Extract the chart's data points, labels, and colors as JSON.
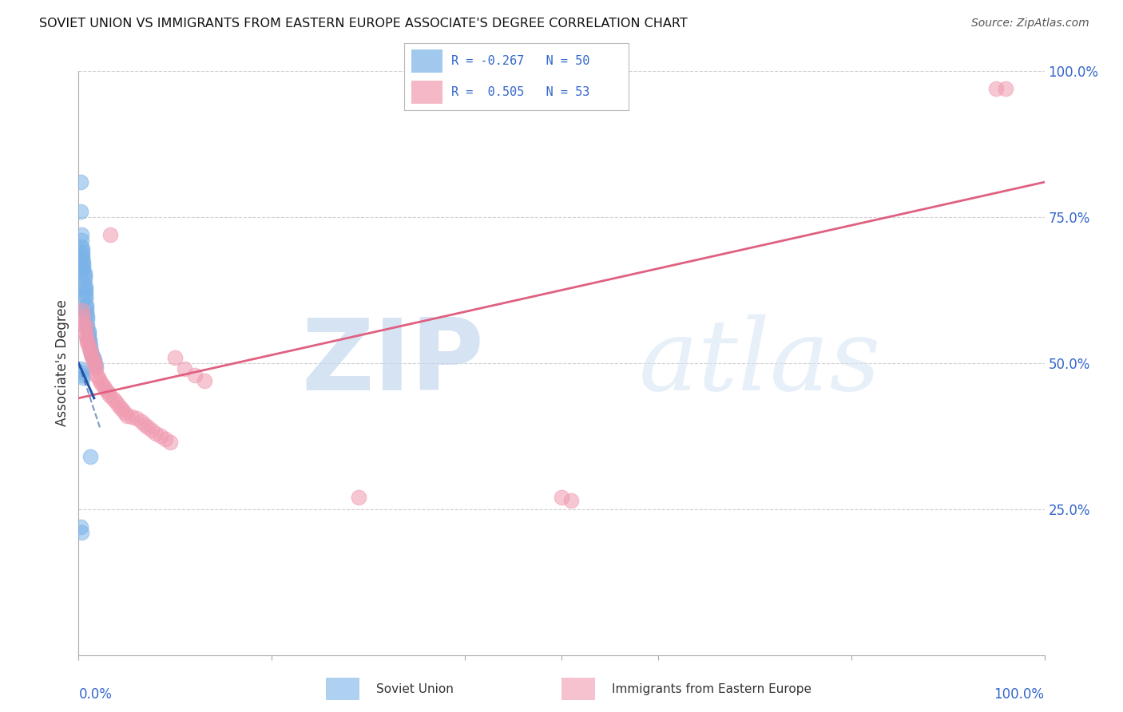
{
  "title": "SOVIET UNION VS IMMIGRANTS FROM EASTERN EUROPE ASSOCIATE'S DEGREE CORRELATION CHART",
  "source": "Source: ZipAtlas.com",
  "ylabel": "Associate's Degree",
  "watermark_zip": "ZIP",
  "watermark_atlas": "atlas",
  "xlim": [
    0.0,
    1.0
  ],
  "ylim": [
    0.0,
    1.0
  ],
  "ytick_labels": [
    "25.0%",
    "50.0%",
    "75.0%",
    "100.0%"
  ],
  "ytick_values": [
    0.25,
    0.5,
    0.75,
    1.0
  ],
  "xtick_left_label": "0.0%",
  "xtick_right_label": "100.0%",
  "bottom_label_left": "Soviet Union",
  "bottom_label_right": "Immigrants from Eastern Europe",
  "background_color": "#ffffff",
  "grid_color": "#cccccc",
  "blue_color": "#7ab3e8",
  "pink_color": "#f09ab0",
  "blue_line_solid_color": "#2255aa",
  "pink_line_color": "#e06080",
  "legend_R_blue": "-0.267",
  "legend_N_blue": "50",
  "legend_R_pink": "0.505",
  "legend_N_pink": "53",
  "blue_scatter_x": [
    0.002,
    0.002,
    0.003,
    0.003,
    0.003,
    0.004,
    0.004,
    0.004,
    0.004,
    0.005,
    0.005,
    0.005,
    0.005,
    0.006,
    0.006,
    0.006,
    0.006,
    0.007,
    0.007,
    0.007,
    0.007,
    0.007,
    0.008,
    0.008,
    0.008,
    0.008,
    0.009,
    0.009,
    0.009,
    0.009,
    0.01,
    0.01,
    0.01,
    0.011,
    0.011,
    0.012,
    0.012,
    0.013,
    0.014,
    0.015,
    0.016,
    0.017,
    0.018,
    0.002,
    0.003,
    0.004,
    0.005,
    0.002,
    0.003,
    0.012
  ],
  "blue_scatter_y": [
    0.81,
    0.76,
    0.72,
    0.71,
    0.7,
    0.695,
    0.69,
    0.685,
    0.68,
    0.675,
    0.67,
    0.665,
    0.66,
    0.655,
    0.65,
    0.645,
    0.635,
    0.63,
    0.625,
    0.62,
    0.615,
    0.61,
    0.6,
    0.595,
    0.59,
    0.585,
    0.58,
    0.575,
    0.565,
    0.56,
    0.555,
    0.55,
    0.545,
    0.54,
    0.535,
    0.53,
    0.525,
    0.52,
    0.515,
    0.51,
    0.505,
    0.5,
    0.495,
    0.49,
    0.485,
    0.48,
    0.475,
    0.22,
    0.21,
    0.34
  ],
  "pink_scatter_x": [
    0.004,
    0.005,
    0.005,
    0.006,
    0.007,
    0.007,
    0.008,
    0.009,
    0.009,
    0.01,
    0.011,
    0.012,
    0.013,
    0.014,
    0.015,
    0.016,
    0.017,
    0.018,
    0.019,
    0.02,
    0.022,
    0.024,
    0.026,
    0.028,
    0.03,
    0.032,
    0.035,
    0.038,
    0.04,
    0.043,
    0.045,
    0.048,
    0.05,
    0.055,
    0.06,
    0.065,
    0.068,
    0.072,
    0.076,
    0.08,
    0.085,
    0.09,
    0.095,
    0.1,
    0.11,
    0.12,
    0.13,
    0.29,
    0.5,
    0.51,
    0.95,
    0.96,
    0.033
  ],
  "pink_scatter_y": [
    0.59,
    0.58,
    0.57,
    0.565,
    0.56,
    0.55,
    0.545,
    0.54,
    0.535,
    0.53,
    0.525,
    0.52,
    0.515,
    0.51,
    0.505,
    0.5,
    0.495,
    0.49,
    0.48,
    0.475,
    0.47,
    0.465,
    0.46,
    0.455,
    0.45,
    0.445,
    0.44,
    0.435,
    0.43,
    0.425,
    0.42,
    0.415,
    0.41,
    0.408,
    0.405,
    0.4,
    0.395,
    0.39,
    0.385,
    0.38,
    0.375,
    0.37,
    0.365,
    0.51,
    0.49,
    0.48,
    0.47,
    0.27,
    0.27,
    0.265,
    0.97,
    0.97,
    0.72
  ],
  "blue_solid_line_x": [
    0.0,
    0.016
  ],
  "blue_solid_line_y": [
    0.5,
    0.44
  ],
  "blue_dash_line_x": [
    0.0,
    0.022
  ],
  "blue_dash_line_y": [
    0.5,
    0.39
  ],
  "pink_line_x": [
    0.0,
    1.0
  ],
  "pink_line_y": [
    0.44,
    0.81
  ]
}
